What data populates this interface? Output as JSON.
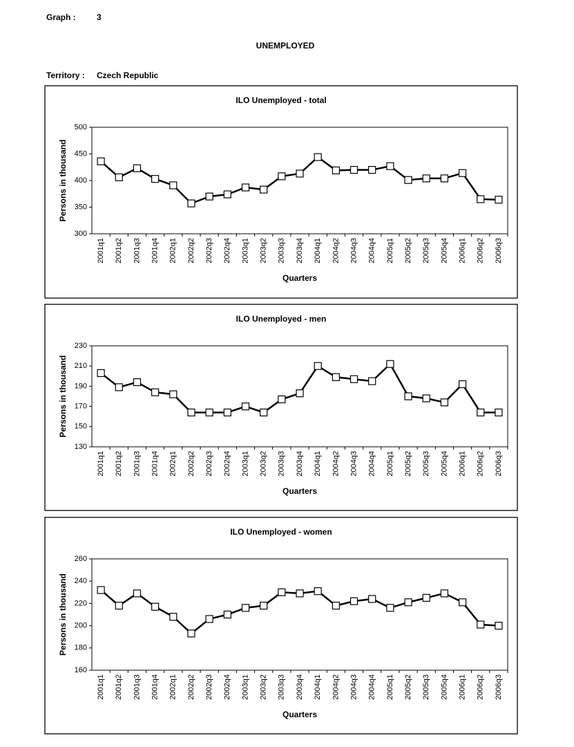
{
  "header": {
    "graph_label": "Graph :",
    "graph_number": 3,
    "title": "UNEMPLOYED",
    "territory_label": "Territory :",
    "territory": "Czech Republic"
  },
  "chart_data": [
    {
      "type": "line",
      "title": "ILO Unemployed - total",
      "x_label": "Quarters",
      "y_label": "Persons in thousand",
      "categories": [
        "2001q1",
        "2001q2",
        "2001q3",
        "2001q4",
        "2002q1",
        "2002q2",
        "2002q3",
        "2002q4",
        "2003q1",
        "2003q2",
        "2003q3",
        "2003q4",
        "2004q1",
        "2004q2",
        "2004q3",
        "2004q4",
        "2005q1",
        "2005q2",
        "2005q3",
        "2005q4",
        "2006q1",
        "2006q2",
        "2006q3"
      ],
      "values": [
        436,
        406,
        423,
        403,
        391,
        357,
        370,
        374,
        387,
        383,
        408,
        413,
        444,
        419,
        420,
        420,
        427,
        401,
        404,
        404,
        414,
        365,
        364
      ],
      "color": "#000000",
      "ylim": [
        300,
        500
      ],
      "yticks": [
        300,
        350,
        400,
        450,
        500
      ]
    },
    {
      "type": "line",
      "title": "ILO Unemployed - men",
      "x_label": "Quarters",
      "y_label": "Persons in thousand",
      "categories": [
        "2001q1",
        "2001q2",
        "2001q3",
        "2001q4",
        "2002q1",
        "2002q2",
        "2002q3",
        "2002q4",
        "2003q1",
        "2003q2",
        "2003q3",
        "2003q4",
        "2004q1",
        "2004q2",
        "2004q3",
        "2004q4",
        "2005q1",
        "2005q2",
        "2005q3",
        "2005q4",
        "2006q1",
        "2006q2",
        "2006q3"
      ],
      "values": [
        203,
        189,
        194,
        184,
        182,
        164,
        164,
        164,
        170,
        164,
        177,
        183,
        210,
        199,
        197,
        195,
        212,
        180,
        178,
        174,
        192,
        164,
        164
      ],
      "color": "#000000",
      "ylim": [
        130,
        230
      ],
      "yticks": [
        130,
        150,
        170,
        190,
        210,
        230
      ]
    },
    {
      "type": "line",
      "title": "ILO Unemployed - women",
      "x_label": "Quarters",
      "y_label": "Persons in thousand",
      "categories": [
        "2001q1",
        "2001q2",
        "2001q3",
        "2001q4",
        "2002q1",
        "2002q2",
        "2002q3",
        "2002q4",
        "2003q1",
        "2003q2",
        "2003q3",
        "2003q4",
        "2004q1",
        "2004q2",
        "2004q3",
        "2004q4",
        "2005q1",
        "2005q2",
        "2005q3",
        "2005q4",
        "2006q1",
        "2006q2",
        "2006q3"
      ],
      "values": [
        232,
        218,
        229,
        217,
        208,
        193,
        206,
        210,
        216,
        218,
        230,
        229,
        231,
        218,
        222,
        224,
        216,
        221,
        225,
        229,
        221,
        201,
        200
      ],
      "color": "#000000",
      "ylim": [
        160,
        260
      ],
      "yticks": [
        160,
        180,
        200,
        220,
        240,
        260
      ]
    }
  ]
}
